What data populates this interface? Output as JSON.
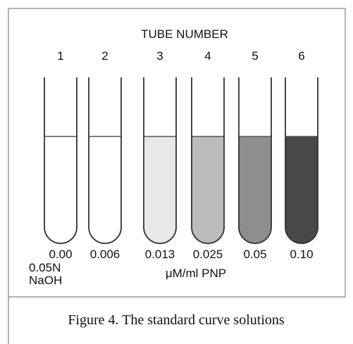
{
  "title": "TUBE NUMBER",
  "tubes": [
    {
      "number": "1",
      "concentration": "0.00",
      "color": "#ffffff"
    },
    {
      "number": "2",
      "concentration": "0.006",
      "color": "#ffffff"
    },
    {
      "number": "3",
      "concentration": "0.013",
      "color": "#e9e9e9"
    },
    {
      "number": "4",
      "concentration": "0.025",
      "color": "#bcbcbc"
    },
    {
      "number": "5",
      "concentration": "0.05",
      "color": "#8e8e8e"
    },
    {
      "number": "6",
      "concentration": "0.10",
      "color": "#484848"
    }
  ],
  "blank_label": [
    "0.05N",
    "NaOH"
  ],
  "unit": "μM/ml PNP",
  "caption": "Figure 4. The standard curve solutions"
}
